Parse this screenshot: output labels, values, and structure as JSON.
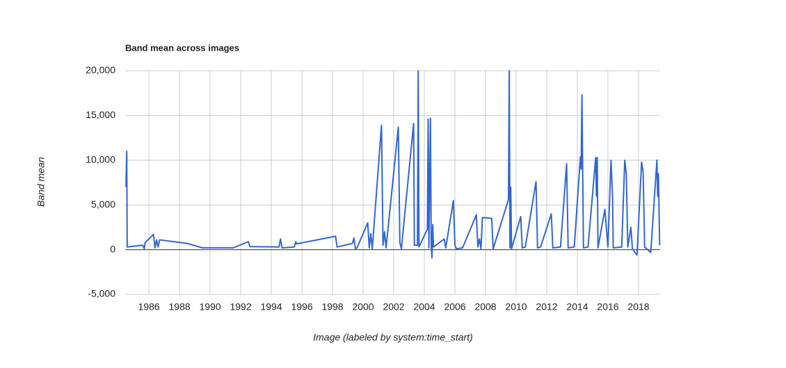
{
  "chart_data": {
    "type": "line",
    "title": "Band mean across images",
    "x_label": "Image (labeled by system:time_start)",
    "y_label": "Band mean",
    "x": [
      1984.5,
      1984.55,
      1984.58,
      1985.6,
      1985.7,
      1985.75,
      1986.3,
      1986.4,
      1986.5,
      1986.6,
      1986.7,
      1988.5,
      1989.5,
      1991.5,
      1992.5,
      1992.6,
      1994.5,
      1994.6,
      1994.7,
      1995.5,
      1995.6,
      1995.65,
      1998.2,
      1998.3,
      1999.3,
      1999.4,
      1999.5,
      1999.6,
      2000.3,
      2000.4,
      2000.5,
      2000.6,
      2001.2,
      2001.3,
      2001.4,
      2001.5,
      2002.3,
      2002.4,
      2002.5,
      2003.3,
      2003.35,
      2003.55,
      2003.6,
      2003.65,
      2004.2,
      2004.25,
      2004.3,
      2004.4,
      2004.45,
      2004.5,
      2004.55,
      2004.6,
      2005.3,
      2005.4,
      2005.9,
      2006.0,
      2006.1,
      2006.5,
      2007.4,
      2007.5,
      2007.6,
      2007.7,
      2007.8,
      2008.4,
      2008.5,
      2009.5,
      2009.55,
      2009.6,
      2009.65,
      2009.7,
      2010.3,
      2010.4,
      2010.6,
      2011.3,
      2011.4,
      2011.6,
      2012.3,
      2012.4,
      2012.9,
      2013.3,
      2013.4,
      2013.8,
      2014.2,
      2014.25,
      2014.3,
      2014.35,
      2014.4,
      2014.7,
      2015.2,
      2015.25,
      2015.3,
      2015.35,
      2015.8,
      2016.0,
      2016.2,
      2016.3,
      2016.35,
      2016.9,
      2017.1,
      2017.2,
      2017.3,
      2017.5,
      2017.6,
      2017.9,
      2018.2,
      2018.3,
      2018.4,
      2018.8,
      2019.2,
      2019.25,
      2019.3,
      2019.38
    ],
    "series": [
      {
        "name": "Band mean",
        "color": "#3366cc",
        "values": [
          7000,
          11000,
          300,
          500,
          100,
          800,
          1700,
          200,
          1100,
          300,
          1100,
          700,
          200,
          200,
          900,
          350,
          300,
          1200,
          200,
          300,
          900,
          650,
          1500,
          300,
          700,
          1300,
          100,
          200,
          3000,
          200,
          1800,
          100,
          13900,
          500,
          2000,
          200,
          13700,
          800,
          100,
          14100,
          500,
          500,
          20000,
          300,
          2300,
          14600,
          200,
          14700,
          500,
          -900,
          2800,
          300,
          1200,
          200,
          5500,
          500,
          100,
          200,
          3900,
          300,
          1200,
          100,
          3600,
          3500,
          100,
          5600,
          20000,
          200,
          7000,
          100,
          3700,
          200,
          300,
          7600,
          200,
          300,
          4000,
          200,
          300,
          9600,
          200,
          300,
          10400,
          9000,
          17300,
          9000,
          200,
          300,
          10300,
          6000,
          10300,
          200,
          4500,
          300,
          10000,
          6000,
          200,
          300,
          10000,
          8500,
          300,
          2500,
          100,
          -600,
          9800,
          8700,
          300,
          -300,
          10000,
          6000,
          8500,
          500
        ]
      }
    ],
    "xlim": [
      1984.45,
      2019.41
    ],
    "xticks": [
      1986,
      1988,
      1990,
      1992,
      1994,
      1996,
      1998,
      2000,
      2002,
      2004,
      2006,
      2008,
      2010,
      2012,
      2014,
      2016,
      2018
    ],
    "ylim": [
      -5000,
      20000
    ],
    "yticks": [
      {
        "value": -5000,
        "label": "-5,000"
      },
      0,
      {
        "value": 5000,
        "label": "5,000"
      },
      {
        "value": 10000,
        "label": "10,000"
      },
      {
        "value": 15000,
        "label": "15,000"
      },
      {
        "value": 20000,
        "label": "20,000"
      }
    ],
    "grid": true
  }
}
